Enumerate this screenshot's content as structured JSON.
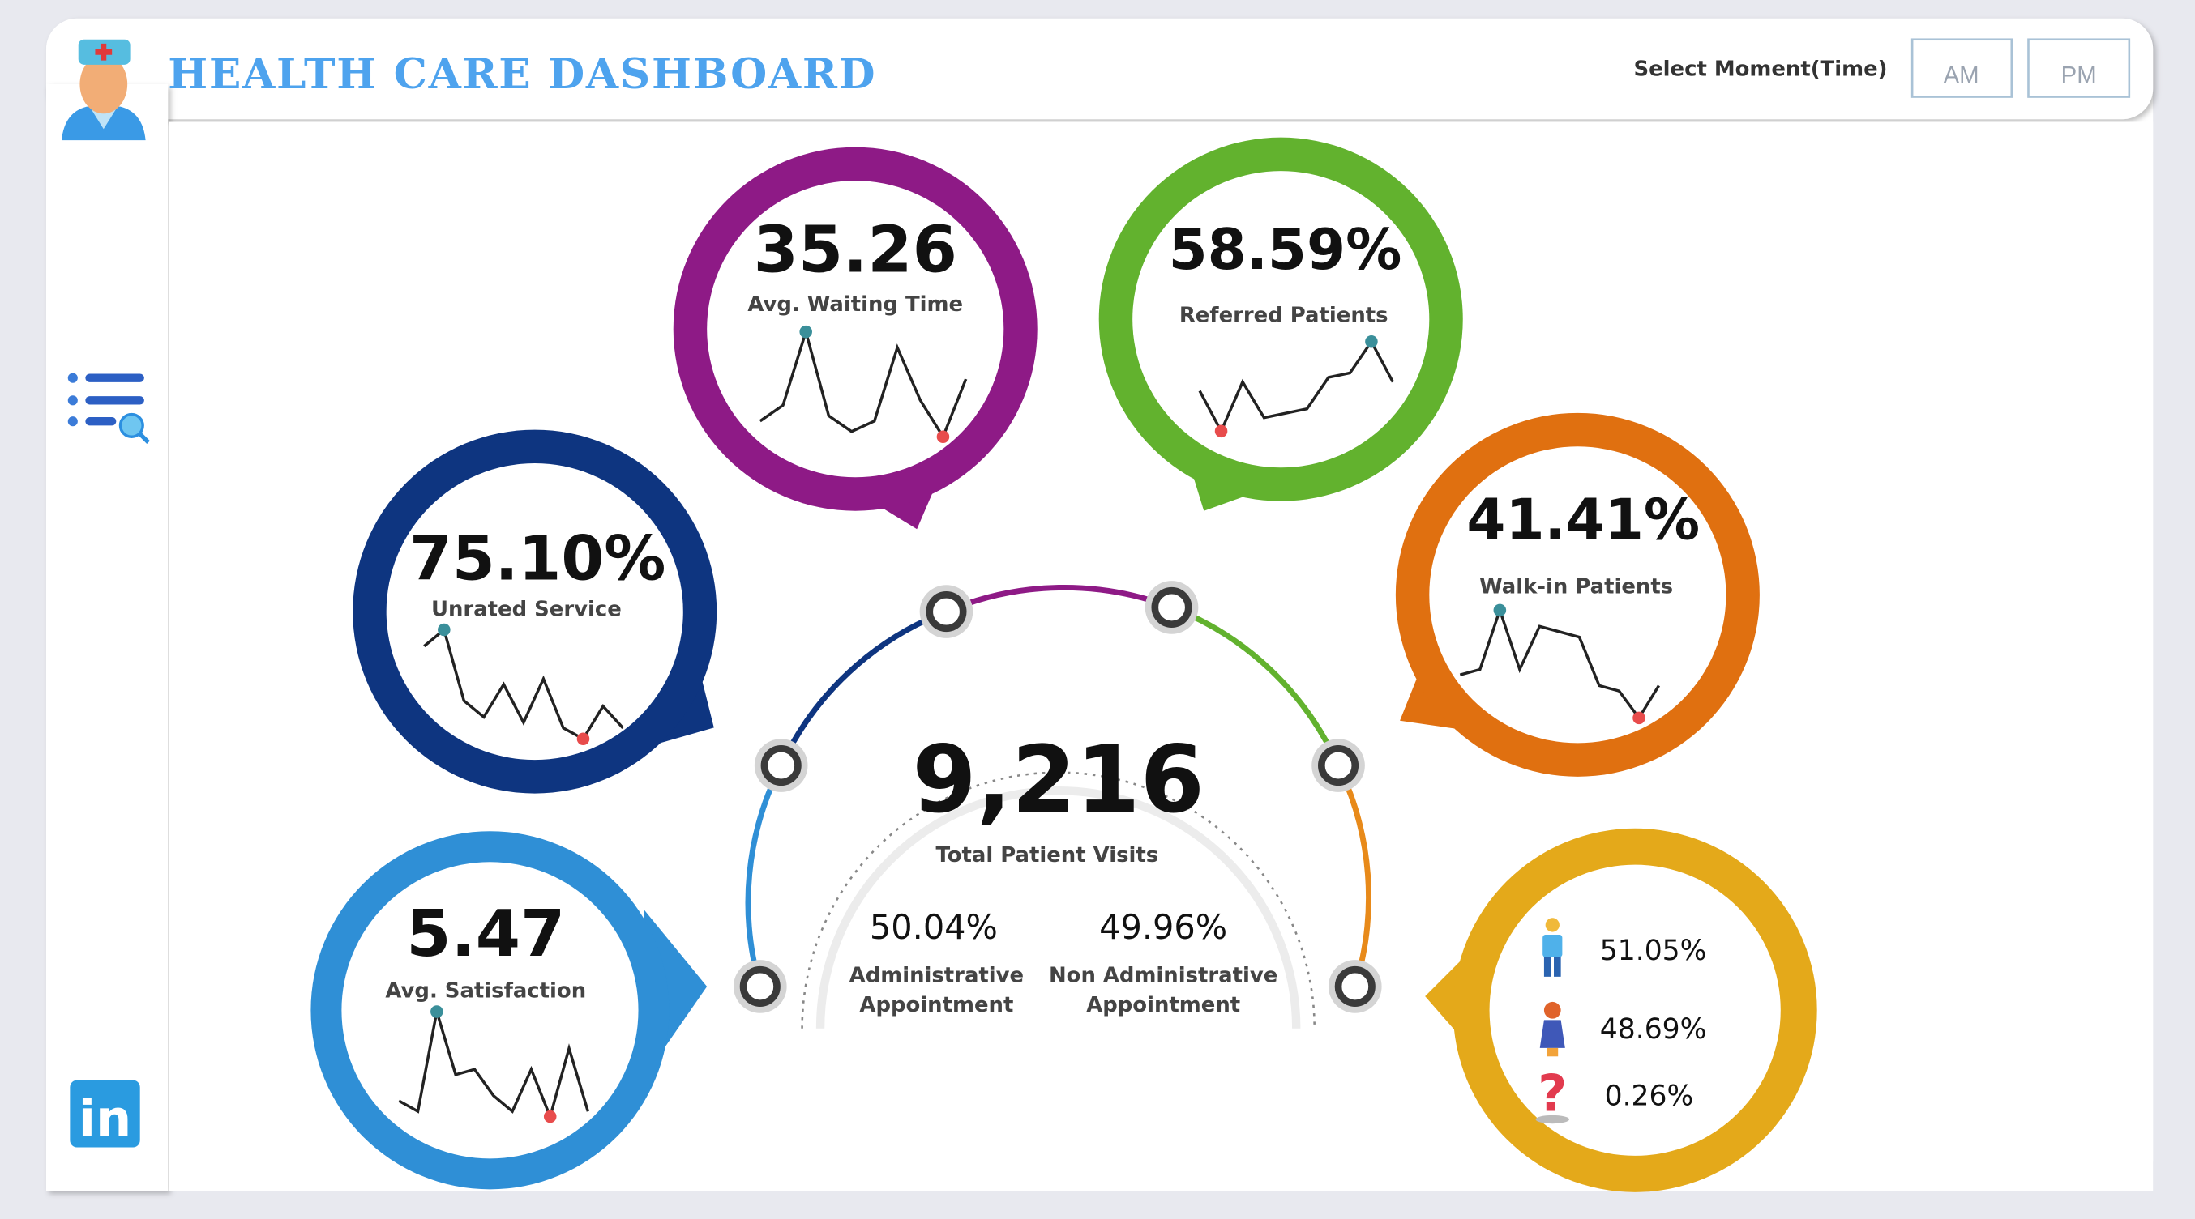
{
  "header": {
    "title": "HEALTH CARE DASHBOARD",
    "select_label": "Select Moment(Time)",
    "buttons": [
      "AM",
      "PM"
    ]
  },
  "sidebar": {
    "icons": [
      "doctor-avatar-icon",
      "list-search-icon",
      "linkedin-icon"
    ],
    "linkedin_text": "in"
  },
  "colors": {
    "purple": "#8e1a86",
    "green": "#62b22e",
    "navy": "#0e3580",
    "orange": "#e07010",
    "blue": "#2f8fd6",
    "gold": "#e4a91a",
    "title": "#4ea3ee",
    "max_marker": "#3a8f9a",
    "min_marker": "#e84c4c"
  },
  "kpis": {
    "waiting": {
      "value": "35.26",
      "label": "Avg. Waiting Time",
      "trend": [
        0.15,
        0.3,
        1.0,
        0.2,
        0.05,
        0.15,
        0.85,
        0.35,
        0.0,
        0.55
      ]
    },
    "referred": {
      "value": "58.59%",
      "label": "Referred Patients",
      "trend": [
        0.45,
        0.0,
        0.55,
        0.15,
        0.2,
        0.25,
        0.6,
        0.65,
        1.0,
        0.55
      ]
    },
    "unrated": {
      "value": "75.10%",
      "label": "Unrated Service",
      "trend": [
        0.85,
        1.0,
        0.35,
        0.2,
        0.5,
        0.15,
        0.55,
        0.1,
        0.0,
        0.3,
        0.1
      ]
    },
    "walkin": {
      "value": "41.41%",
      "label": "Walk-in Patients",
      "trend": [
        0.4,
        0.45,
        1.0,
        0.45,
        0.85,
        0.8,
        0.75,
        0.3,
        0.25,
        0.0,
        0.3
      ]
    },
    "satisfaction": {
      "value": "5.47",
      "label": "Avg. Satisfaction",
      "trend": [
        0.15,
        0.05,
        1.0,
        0.4,
        0.45,
        0.2,
        0.05,
        0.45,
        0.0,
        0.65,
        0.05
      ]
    }
  },
  "center": {
    "total": "9,216",
    "total_label": "Total Patient Visits",
    "admin_value": "50.04%",
    "admin_label": [
      "Administrative",
      "Appointment"
    ],
    "nonadmin_value": "49.96%",
    "nonadmin_label": [
      "Non Administrative",
      "Appointment"
    ]
  },
  "gender": {
    "male": "51.05%",
    "female": "48.69%",
    "unknown": "0.26%"
  }
}
